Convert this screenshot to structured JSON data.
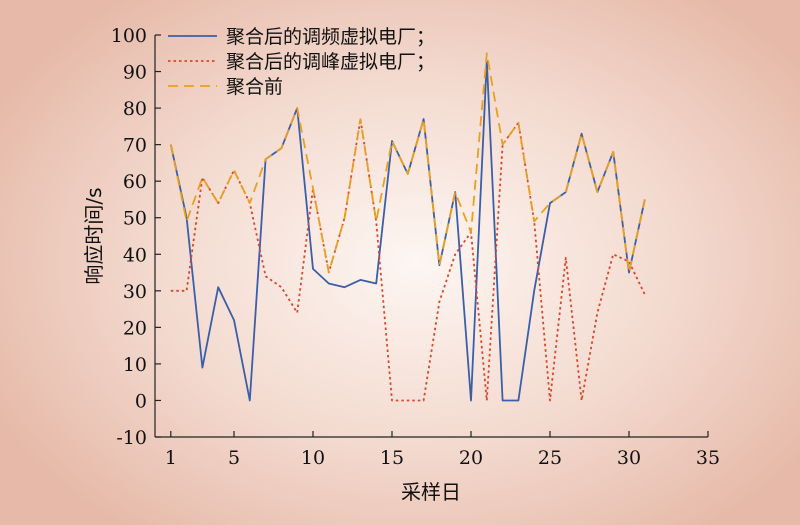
{
  "chart_data": {
    "type": "line",
    "xlabel": "采样日",
    "ylabel": "响应时间/s",
    "xlim": [
      0,
      35
    ],
    "ylim": [
      -10,
      100
    ],
    "xticks": [
      1,
      5,
      10,
      15,
      20,
      25,
      30,
      35
    ],
    "yticks": [
      -10,
      0,
      10,
      20,
      30,
      40,
      50,
      60,
      70,
      80,
      90,
      100
    ],
    "legend_position": "top-left",
    "grid": false,
    "x": [
      1,
      2,
      3,
      4,
      5,
      6,
      7,
      8,
      9,
      10,
      11,
      12,
      13,
      14,
      15,
      16,
      17,
      18,
      19,
      20,
      21,
      22,
      23,
      24,
      25,
      26,
      27,
      28,
      29,
      30,
      31
    ],
    "series": [
      {
        "name": "聚合后的调频虚拟电厂；",
        "color": "#3a5fa8",
        "style": "solid",
        "values": [
          70,
          50,
          9,
          31,
          22,
          0,
          66,
          69,
          80,
          36,
          32,
          31,
          33,
          32,
          71,
          62,
          77,
          37,
          57,
          0,
          93,
          0,
          0,
          30,
          54,
          57,
          73,
          57,
          68,
          35,
          55
        ]
      },
      {
        "name": "聚合后的调峰虚拟电厂；",
        "color": "#d9472b",
        "style": "dotted",
        "values": [
          30,
          30,
          61,
          54,
          63,
          54,
          34,
          31,
          24,
          58,
          35,
          50,
          77,
          49,
          0,
          0,
          0,
          27,
          40,
          46,
          0,
          70,
          76,
          49,
          0,
          39,
          0,
          24,
          40,
          38,
          29
        ]
      },
      {
        "name": "聚合前",
        "color": "#e8a020",
        "style": "dashed",
        "values": [
          70,
          49,
          61,
          54,
          63,
          54,
          66,
          69,
          80,
          58,
          35,
          50,
          77,
          49,
          71,
          62,
          77,
          37,
          57,
          46,
          95,
          70,
          76,
          49,
          54,
          57,
          73,
          57,
          68,
          35,
          55
        ]
      }
    ]
  }
}
